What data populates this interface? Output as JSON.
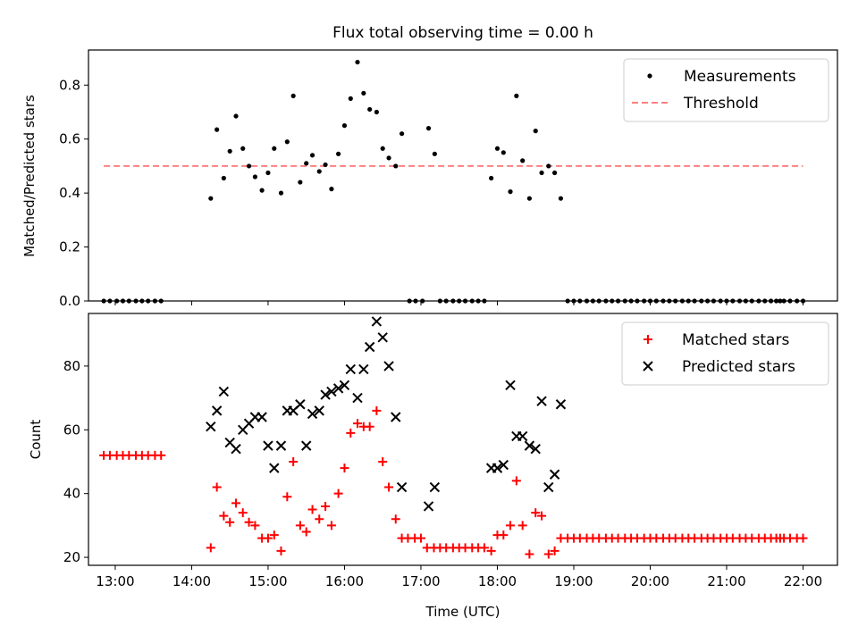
{
  "title": "Flux total observing time = 0.00 h",
  "colors": {
    "measure": "#000000",
    "threshold": "#ff8080",
    "matched": "#ff0000",
    "predicted": "#000000"
  },
  "chart_data": [
    {
      "type": "scatter",
      "title": "Flux total observing time = 0.00 h",
      "xlabel": "",
      "ylabel": "Matched/Predicted stars",
      "xlim": [
        12.65,
        22.45
      ],
      "ylim": [
        0.0,
        0.93
      ],
      "yticks": [
        0.0,
        0.2,
        0.4,
        0.6,
        0.8
      ],
      "ytick_labels": [
        "0.0",
        "0.2",
        "0.4",
        "0.6",
        "0.8"
      ],
      "xticks": [
        13,
        14,
        15,
        16,
        17,
        18,
        19,
        20,
        21,
        22
      ],
      "xtick_labels": [
        "",
        "",
        "",
        "",
        "",
        "",
        "",
        "",
        "",
        ""
      ],
      "legend": "top-right",
      "threshold": {
        "name": "Threshold",
        "y": 0.5,
        "x": [
          12.85,
          22.0
        ]
      },
      "series": [
        {
          "name": "Measurements",
          "points": [
            [
              12.85,
              0
            ],
            [
              12.93,
              0
            ],
            [
              13.02,
              0
            ],
            [
              13.1,
              0
            ],
            [
              13.18,
              0
            ],
            [
              13.27,
              0
            ],
            [
              13.35,
              0
            ],
            [
              13.43,
              0
            ],
            [
              13.52,
              0
            ],
            [
              13.6,
              0
            ],
            [
              14.25,
              0.38
            ],
            [
              14.33,
              0.635
            ],
            [
              14.42,
              0.455
            ],
            [
              14.5,
              0.555
            ],
            [
              14.58,
              0.685
            ],
            [
              14.67,
              0.565
            ],
            [
              14.75,
              0.5
            ],
            [
              14.83,
              0.46
            ],
            [
              14.92,
              0.41
            ],
            [
              15.0,
              0.475
            ],
            [
              15.08,
              0.565
            ],
            [
              15.17,
              0.4
            ],
            [
              15.25,
              0.59
            ],
            [
              15.33,
              0.76
            ],
            [
              15.42,
              0.44
            ],
            [
              15.5,
              0.51
            ],
            [
              15.58,
              0.54
            ],
            [
              15.67,
              0.48
            ],
            [
              15.75,
              0.505
            ],
            [
              15.83,
              0.415
            ],
            [
              15.92,
              0.545
            ],
            [
              16.0,
              0.65
            ],
            [
              16.08,
              0.75
            ],
            [
              16.17,
              0.885
            ],
            [
              16.25,
              0.77
            ],
            [
              16.33,
              0.71
            ],
            [
              16.42,
              0.7
            ],
            [
              16.5,
              0.565
            ],
            [
              16.58,
              0.53
            ],
            [
              16.67,
              0.5
            ],
            [
              16.75,
              0.62
            ],
            [
              16.85,
              0
            ],
            [
              16.93,
              0
            ],
            [
              17.02,
              0
            ],
            [
              17.1,
              0.64
            ],
            [
              17.18,
              0.545
            ],
            [
              17.25,
              0
            ],
            [
              17.33,
              0
            ],
            [
              17.42,
              0
            ],
            [
              17.5,
              0
            ],
            [
              17.58,
              0
            ],
            [
              17.67,
              0
            ],
            [
              17.75,
              0
            ],
            [
              17.83,
              0
            ],
            [
              17.92,
              0.455
            ],
            [
              18.0,
              0.565
            ],
            [
              18.08,
              0.55
            ],
            [
              18.17,
              0.405
            ],
            [
              18.25,
              0.76
            ],
            [
              18.33,
              0.52
            ],
            [
              18.42,
              0.38
            ],
            [
              18.5,
              0.63
            ],
            [
              18.58,
              0.475
            ],
            [
              18.67,
              0.5
            ],
            [
              18.75,
              0.475
            ],
            [
              18.83,
              0.38
            ],
            [
              18.92,
              0
            ],
            [
              19.0,
              0
            ],
            [
              19.08,
              0
            ],
            [
              19.17,
              0
            ],
            [
              19.25,
              0
            ],
            [
              19.33,
              0
            ],
            [
              19.42,
              0
            ],
            [
              19.5,
              0
            ],
            [
              19.58,
              0
            ],
            [
              19.67,
              0
            ],
            [
              19.75,
              0
            ],
            [
              19.83,
              0
            ],
            [
              19.92,
              0
            ],
            [
              20.0,
              0
            ],
            [
              20.08,
              0
            ],
            [
              20.17,
              0
            ],
            [
              20.25,
              0
            ],
            [
              20.33,
              0
            ],
            [
              20.42,
              0
            ],
            [
              20.5,
              0
            ],
            [
              20.58,
              0
            ],
            [
              20.67,
              0
            ],
            [
              20.75,
              0
            ],
            [
              20.83,
              0
            ],
            [
              20.92,
              0
            ],
            [
              21.0,
              0
            ],
            [
              21.08,
              0
            ],
            [
              21.17,
              0
            ],
            [
              21.25,
              0
            ],
            [
              21.33,
              0
            ],
            [
              21.42,
              0
            ],
            [
              21.5,
              0
            ],
            [
              21.58,
              0
            ],
            [
              21.65,
              0
            ],
            [
              21.7,
              0
            ],
            [
              21.75,
              0
            ],
            [
              21.83,
              0
            ],
            [
              21.92,
              0
            ],
            [
              22.0,
              0
            ]
          ]
        }
      ]
    },
    {
      "type": "scatter",
      "title": "",
      "xlabel": "Time (UTC)",
      "ylabel": "Count",
      "xlim": [
        12.65,
        22.45
      ],
      "ylim": [
        17.5,
        96.5
      ],
      "yticks": [
        20,
        40,
        60,
        80
      ],
      "ytick_labels": [
        "20",
        "40",
        "60",
        "80"
      ],
      "xticks": [
        13,
        14,
        15,
        16,
        17,
        18,
        19,
        20,
        21,
        22
      ],
      "xtick_labels": [
        "13:00",
        "14:00",
        "15:00",
        "16:00",
        "17:00",
        "18:00",
        "19:00",
        "20:00",
        "21:00",
        "22:00"
      ],
      "legend": "top-right",
      "series": [
        {
          "name": "Matched stars",
          "marker": "+",
          "points": [
            [
              12.85,
              52
            ],
            [
              12.93,
              52
            ],
            [
              13.02,
              52
            ],
            [
              13.1,
              52
            ],
            [
              13.18,
              52
            ],
            [
              13.27,
              52
            ],
            [
              13.35,
              52
            ],
            [
              13.43,
              52
            ],
            [
              13.52,
              52
            ],
            [
              13.6,
              52
            ],
            [
              14.25,
              23
            ],
            [
              14.33,
              42
            ],
            [
              14.42,
              33
            ],
            [
              14.5,
              31
            ],
            [
              14.58,
              37
            ],
            [
              14.67,
              34
            ],
            [
              14.75,
              31
            ],
            [
              14.83,
              30
            ],
            [
              14.92,
              26
            ],
            [
              15.0,
              26
            ],
            [
              15.08,
              27
            ],
            [
              15.17,
              22
            ],
            [
              15.25,
              39
            ],
            [
              15.33,
              50
            ],
            [
              15.42,
              30
            ],
            [
              15.5,
              28
            ],
            [
              15.58,
              35
            ],
            [
              15.67,
              32
            ],
            [
              15.75,
              36
            ],
            [
              15.83,
              30
            ],
            [
              15.92,
              40
            ],
            [
              16.0,
              48
            ],
            [
              16.08,
              59
            ],
            [
              16.17,
              62
            ],
            [
              16.25,
              61
            ],
            [
              16.33,
              61
            ],
            [
              16.42,
              66
            ],
            [
              16.5,
              50
            ],
            [
              16.58,
              42
            ],
            [
              16.67,
              32
            ],
            [
              16.75,
              26
            ],
            [
              16.83,
              26
            ],
            [
              16.92,
              26
            ],
            [
              17.0,
              26
            ],
            [
              17.08,
              23
            ],
            [
              17.17,
              23
            ],
            [
              17.25,
              23
            ],
            [
              17.33,
              23
            ],
            [
              17.42,
              23
            ],
            [
              17.5,
              23
            ],
            [
              17.58,
              23
            ],
            [
              17.67,
              23
            ],
            [
              17.75,
              23
            ],
            [
              17.83,
              23
            ],
            [
              17.92,
              22
            ],
            [
              18.0,
              27
            ],
            [
              18.08,
              27
            ],
            [
              18.17,
              30
            ],
            [
              18.25,
              44
            ],
            [
              18.33,
              30
            ],
            [
              18.42,
              21
            ],
            [
              18.5,
              34
            ],
            [
              18.58,
              33
            ],
            [
              18.67,
              21
            ],
            [
              18.75,
              22
            ],
            [
              18.83,
              26
            ],
            [
              18.92,
              26
            ],
            [
              19.0,
              26
            ],
            [
              19.08,
              26
            ],
            [
              19.17,
              26
            ],
            [
              19.25,
              26
            ],
            [
              19.33,
              26
            ],
            [
              19.42,
              26
            ],
            [
              19.5,
              26
            ],
            [
              19.58,
              26
            ],
            [
              19.67,
              26
            ],
            [
              19.75,
              26
            ],
            [
              19.83,
              26
            ],
            [
              19.92,
              26
            ],
            [
              20.0,
              26
            ],
            [
              20.08,
              26
            ],
            [
              20.17,
              26
            ],
            [
              20.25,
              26
            ],
            [
              20.33,
              26
            ],
            [
              20.42,
              26
            ],
            [
              20.5,
              26
            ],
            [
              20.58,
              26
            ],
            [
              20.67,
              26
            ],
            [
              20.75,
              26
            ],
            [
              20.83,
              26
            ],
            [
              20.92,
              26
            ],
            [
              21.0,
              26
            ],
            [
              21.08,
              26
            ],
            [
              21.17,
              26
            ],
            [
              21.25,
              26
            ],
            [
              21.33,
              26
            ],
            [
              21.42,
              26
            ],
            [
              21.5,
              26
            ],
            [
              21.58,
              26
            ],
            [
              21.65,
              26
            ],
            [
              21.7,
              26
            ],
            [
              21.75,
              26
            ],
            [
              21.83,
              26
            ],
            [
              21.92,
              26
            ],
            [
              22.0,
              26
            ]
          ]
        },
        {
          "name": "Predicted stars",
          "marker": "x",
          "points": [
            [
              14.25,
              61
            ],
            [
              14.33,
              66
            ],
            [
              14.42,
              72
            ],
            [
              14.5,
              56
            ],
            [
              14.58,
              54
            ],
            [
              14.67,
              60
            ],
            [
              14.75,
              62
            ],
            [
              14.83,
              64
            ],
            [
              14.92,
              64
            ],
            [
              15.0,
              55
            ],
            [
              15.08,
              48
            ],
            [
              15.17,
              55
            ],
            [
              15.25,
              66
            ],
            [
              15.33,
              66
            ],
            [
              15.42,
              68
            ],
            [
              15.5,
              55
            ],
            [
              15.58,
              65
            ],
            [
              15.67,
              66
            ],
            [
              15.75,
              71
            ],
            [
              15.83,
              72
            ],
            [
              15.92,
              73
            ],
            [
              16.0,
              74
            ],
            [
              16.08,
              79
            ],
            [
              16.17,
              70
            ],
            [
              16.25,
              79
            ],
            [
              16.33,
              86
            ],
            [
              16.42,
              94
            ],
            [
              16.5,
              89
            ],
            [
              16.58,
              80
            ],
            [
              16.67,
              64
            ],
            [
              16.75,
              42
            ],
            [
              17.1,
              36
            ],
            [
              17.18,
              42
            ],
            [
              17.92,
              48
            ],
            [
              18.0,
              48
            ],
            [
              18.08,
              49
            ],
            [
              18.17,
              74
            ],
            [
              18.25,
              58
            ],
            [
              18.33,
              58
            ],
            [
              18.42,
              55
            ],
            [
              18.5,
              54
            ],
            [
              18.58,
              69
            ],
            [
              18.67,
              42
            ],
            [
              18.75,
              46
            ],
            [
              18.83,
              68
            ]
          ]
        }
      ]
    }
  ]
}
